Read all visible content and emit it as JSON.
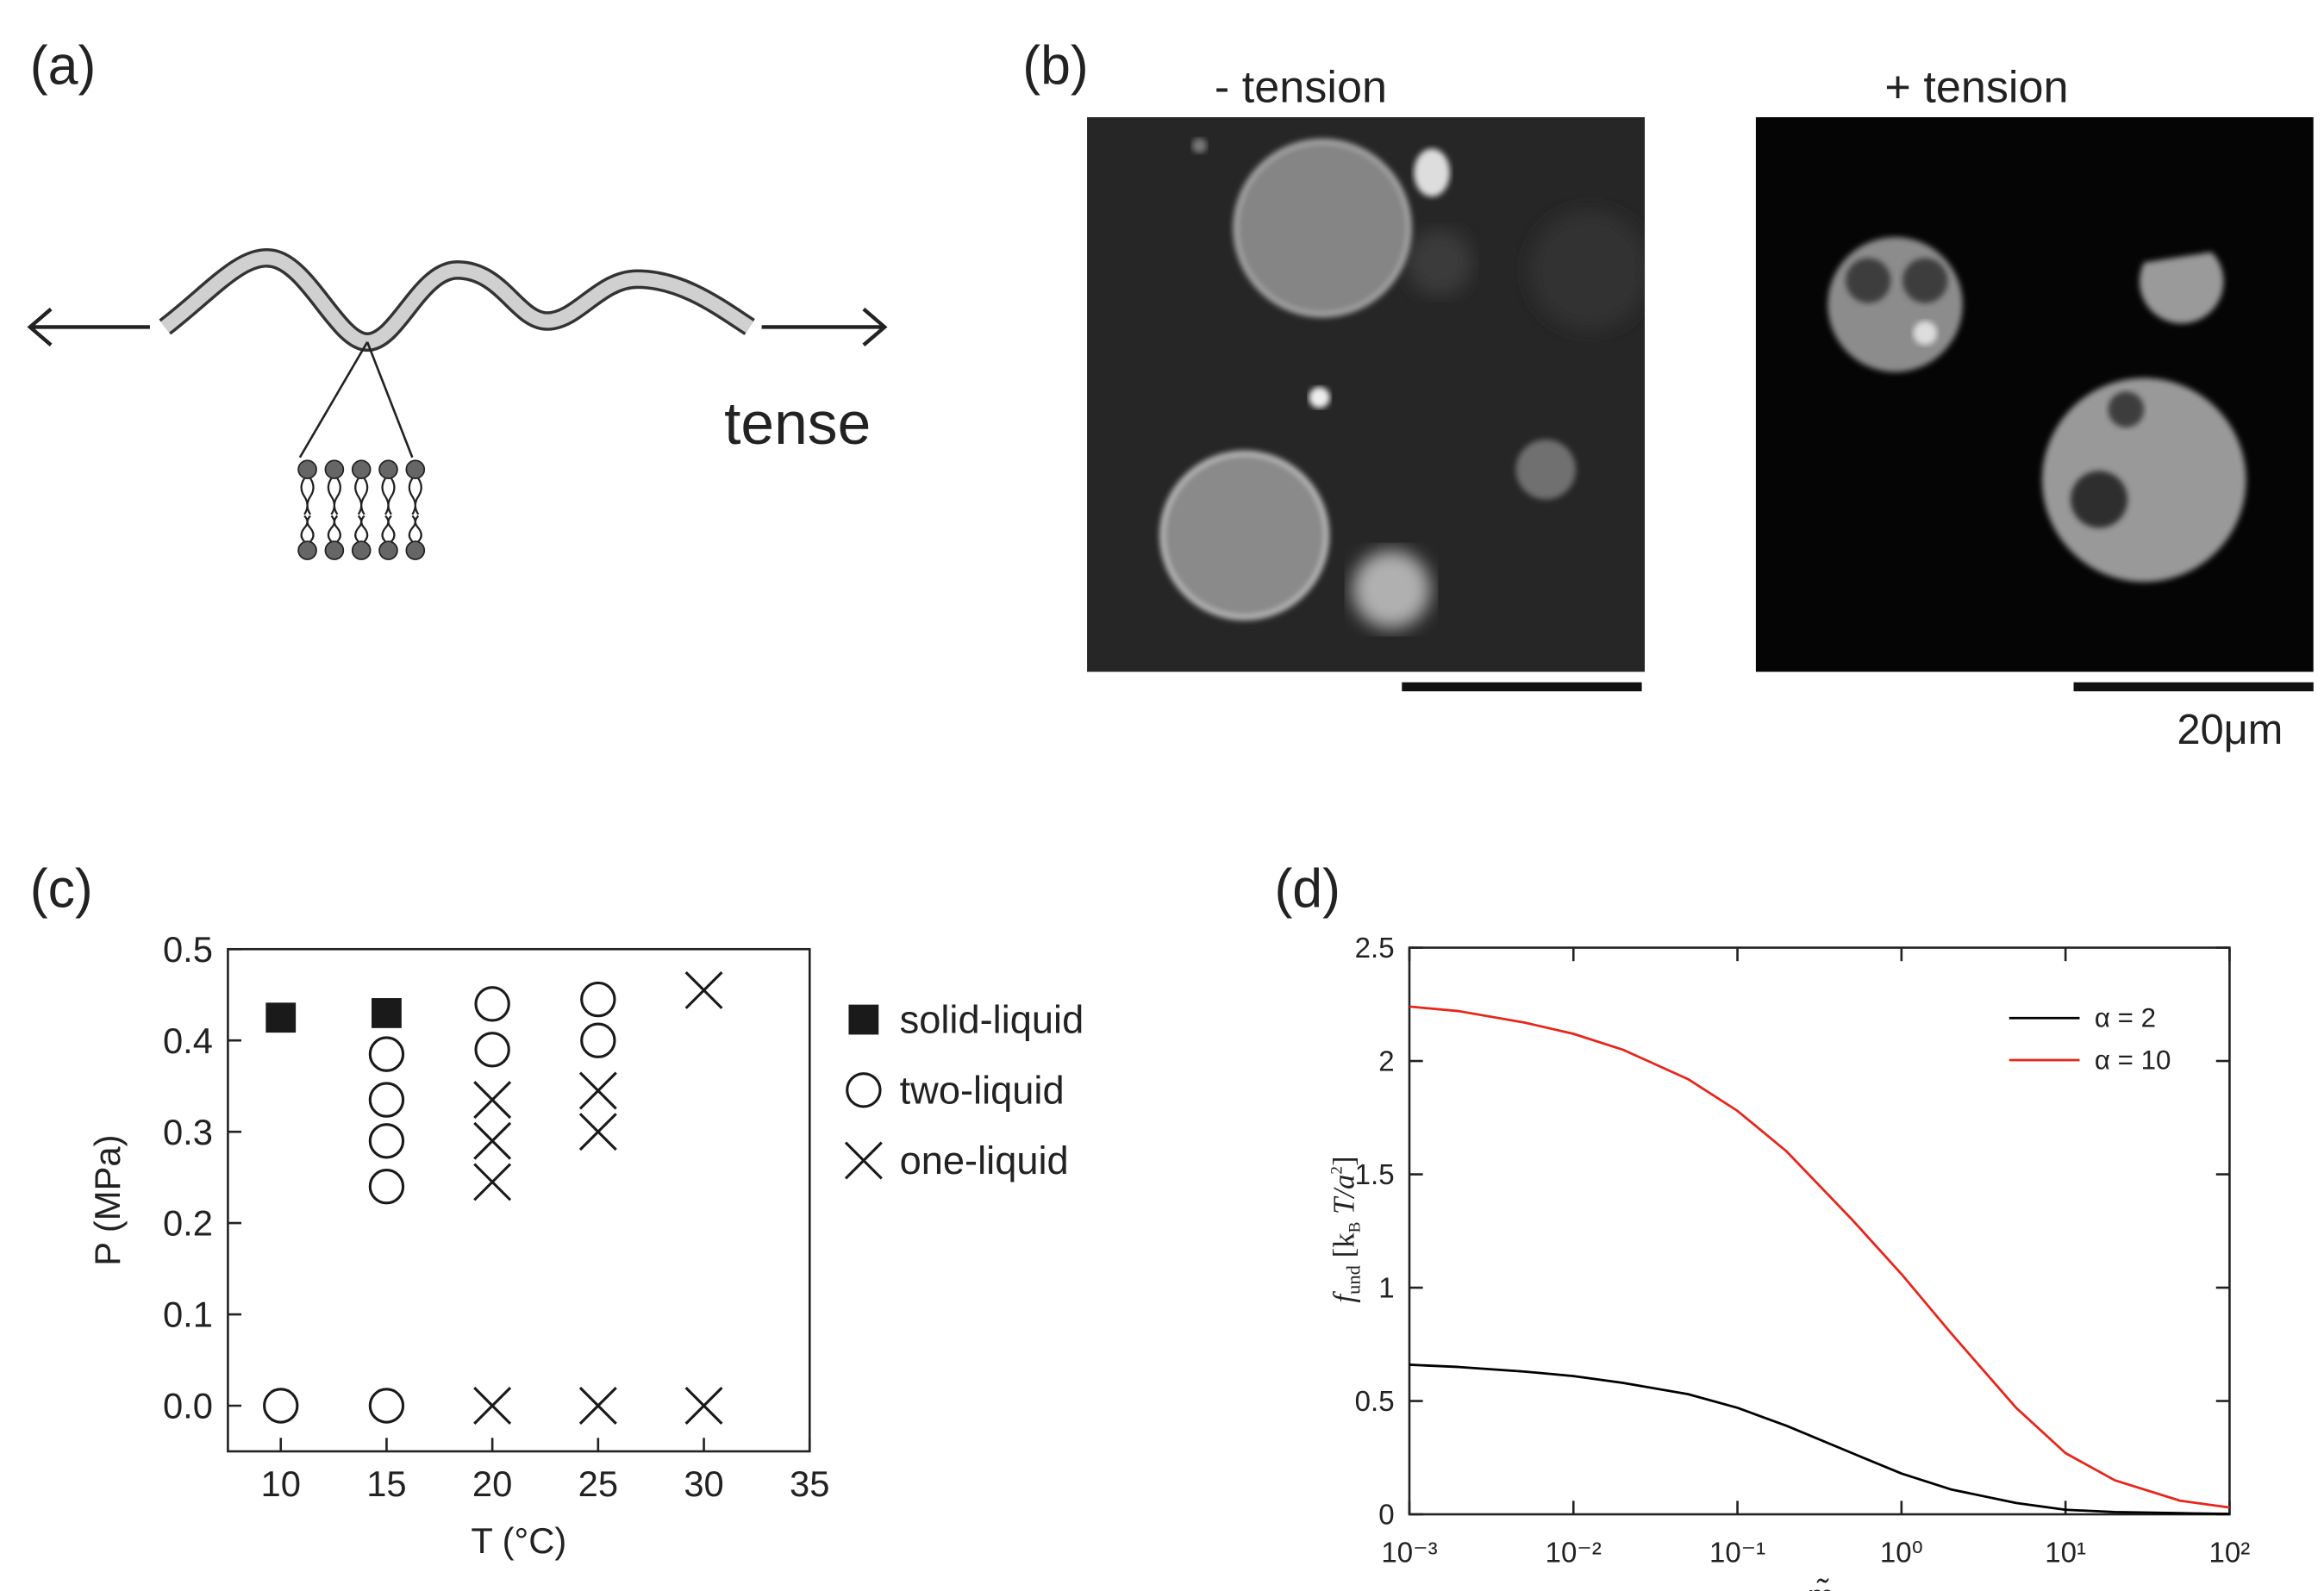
{
  "panel_labels": [
    "(a)",
    "(b)",
    "(c)",
    "(d)"
  ],
  "panel_a": {
    "label": "tense"
  },
  "panel_b": {
    "left_title": "- tension",
    "right_title": "+ tension",
    "scale_bar": "20μm"
  },
  "chart_data": [
    {
      "type": "scatter",
      "xlabel": "T (°C)",
      "ylabel": "P (MPa)",
      "xlim": [
        7.5,
        35
      ],
      "ylim": [
        -0.05,
        0.5
      ],
      "xticks": [
        10,
        15,
        20,
        25,
        30,
        35
      ],
      "yticks": [
        {
          "value": 0,
          "label": "0.0"
        },
        0.1,
        0.2,
        0.3,
        0.4,
        0.5
      ],
      "legend": "outside-right",
      "series": [
        {
          "name": "solid-liquid",
          "marker": "filled-square",
          "color": "#1a1a1a",
          "x": [
            10,
            15
          ],
          "values": [
            0.425,
            0.43
          ]
        },
        {
          "name": "two-liquid",
          "marker": "open-circle",
          "color": "#1a1a1a",
          "x": [
            10,
            15,
            15,
            15,
            15,
            15,
            20,
            20,
            25,
            25
          ],
          "values": [
            0,
            0,
            0.24,
            0.29,
            0.335,
            0.385,
            0.39,
            0.44,
            0.4,
            0.445
          ]
        },
        {
          "name": "one-liquid",
          "marker": "cross",
          "color": "#1a1a1a",
          "x": [
            20,
            25,
            30,
            20,
            20,
            20,
            25,
            25,
            30
          ],
          "values": [
            0,
            0,
            0,
            0.245,
            0.29,
            0.335,
            0.3,
            0.345,
            0.455
          ]
        }
      ]
    },
    {
      "type": "line",
      "xlabel": "m̃",
      "ylabel": [
        "f",
        "und",
        " [k",
        "B",
        " T/a",
        "2",
        "]"
      ],
      "log_x": true,
      "xlim": [
        0.001,
        100
      ],
      "ylim": [
        0,
        2.5
      ],
      "xticks": [
        {
          "value": 0.001,
          "label": "10⁻³"
        },
        {
          "value": 0.01,
          "label": "10⁻²"
        },
        {
          "value": 0.1,
          "label": "10⁻¹"
        },
        {
          "value": 1,
          "label": "10⁰"
        },
        {
          "value": 10,
          "label": "10¹"
        },
        {
          "value": 100,
          "label": "10²"
        }
      ],
      "yticks": [
        0,
        0.5,
        1,
        1.5,
        2,
        2.5
      ],
      "legend": "upper-right",
      "x": [
        0.001,
        0.002,
        0.005,
        0.01,
        0.02,
        0.05,
        0.1,
        0.2,
        0.5,
        1,
        2,
        5,
        10,
        20,
        50,
        100
      ],
      "series": [
        {
          "name": "α = 2",
          "color": "#000000",
          "values": [
            0.66,
            0.65,
            0.63,
            0.61,
            0.58,
            0.53,
            0.47,
            0.39,
            0.27,
            0.18,
            0.11,
            0.05,
            0.02,
            0.01,
            0.005,
            0.002
          ]
        },
        {
          "name": "α = 10",
          "color": "#e8251a",
          "values": [
            2.24,
            2.22,
            2.17,
            2.12,
            2.05,
            1.92,
            1.78,
            1.6,
            1.3,
            1.06,
            0.8,
            0.47,
            0.27,
            0.15,
            0.06,
            0.03
          ]
        }
      ]
    }
  ]
}
